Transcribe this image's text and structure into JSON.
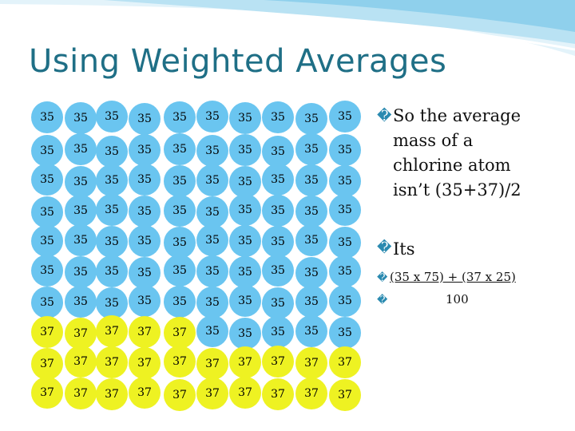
{
  "title": "Using Weighted Averages",
  "bullet_mark": "�",
  "bullets": {
    "first": "So the average mass of a chlorine atom isn’t (35+37)/2",
    "second": "Its",
    "numerator": "(35 x 75) + (37 x 25)",
    "denominator": "100"
  },
  "grid": {
    "rows": [
      [
        "35",
        "35",
        "35",
        "35",
        "35",
        "35",
        "35",
        "35",
        "35",
        "35"
      ],
      [
        "35",
        "35",
        "35",
        "35",
        "35",
        "35",
        "35",
        "35",
        "35",
        "35"
      ],
      [
        "35",
        "35",
        "35",
        "35",
        "35",
        "35",
        "35",
        "35",
        "35",
        "35"
      ],
      [
        "35",
        "35",
        "35",
        "35",
        "35",
        "35",
        "35",
        "35",
        "35",
        "35"
      ],
      [
        "35",
        "35",
        "35",
        "35",
        "35",
        "35",
        "35",
        "35",
        "35",
        "35"
      ],
      [
        "35",
        "35",
        "35",
        "35",
        "35",
        "35",
        "35",
        "35",
        "35",
        "35"
      ],
      [
        "35",
        "35",
        "35",
        "35",
        "35",
        "35",
        "35",
        "35",
        "35",
        "35"
      ],
      [
        "37",
        "37",
        "37",
        "37",
        "37",
        "35",
        "35",
        "35",
        "35",
        "35"
      ],
      [
        "37",
        "37",
        "37",
        "37",
        "37",
        "37",
        "37",
        "37",
        "37",
        "37"
      ],
      [
        "37",
        "37",
        "37",
        "37",
        "37",
        "37",
        "37",
        "37",
        "37",
        "37"
      ]
    ]
  },
  "colors": {
    "isotope_35": "#6ac5f0",
    "isotope_37": "#eef222",
    "title": "#1f6f86"
  }
}
